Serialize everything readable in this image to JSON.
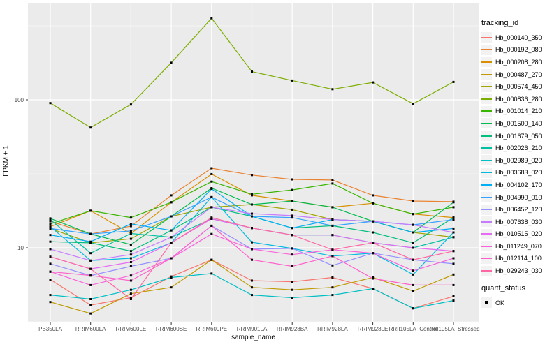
{
  "figure": {
    "background": "#FFFFFF",
    "panel_background": "#EBEBEB",
    "grid_color": "#FFFFFF",
    "tick_color": "#333333",
    "axis_text_color": "#4D4D4D",
    "point_color": "#000000"
  },
  "chart_data": {
    "type": "line",
    "title": "",
    "xlabel": "sample_name",
    "ylabel": "FPKM + 1",
    "y_scale": "log10",
    "ylim": [
      3.16,
      448
    ],
    "grid": true,
    "y_ticks": [
      {
        "label": "100",
        "value": 100
      },
      {
        "label": "10",
        "value": 10
      }
    ],
    "categories": [
      "PB350LA",
      "RRIM600LA",
      "RRIM600LE",
      "RRIM600SE",
      "RRIM600PE",
      "RRIM901LA",
      "RRIM928BA",
      "RRIM928LA",
      "RRIM928LE",
      "RRII105LA_Control",
      "RRII105LA_Stressed"
    ],
    "legend": {
      "title": "tracking_id",
      "position": "right"
    },
    "quant_status": {
      "title": "quant_status",
      "items": [
        "OK"
      ]
    },
    "series": [
      {
        "name": "Hb_000140_350",
        "color": "#F8766D",
        "values": [
          6.1,
          4.1,
          4.6,
          6.4,
          8.3,
          6.0,
          5.9,
          6.3,
          5.3,
          3.9,
          4.7
        ]
      },
      {
        "name": "Hb_000192_080",
        "color": "#EA8331",
        "values": [
          15.1,
          12.4,
          14.0,
          22.6,
          34.5,
          31.0,
          29.0,
          28.7,
          22.6,
          20.7,
          20.5
        ]
      },
      {
        "name": "Hb_000208_280",
        "color": "#D89000",
        "values": [
          13.9,
          17.8,
          12.5,
          20.3,
          31.5,
          22.6,
          20.7,
          18.8,
          20.0,
          16.9,
          16.0
        ]
      },
      {
        "name": "Hb_000487_270",
        "color": "#C09B00",
        "values": [
          4.3,
          3.6,
          4.9,
          5.4,
          8.3,
          5.4,
          5.2,
          5.4,
          6.3,
          5.1,
          6.6
        ]
      },
      {
        "name": "Hb_000574_450",
        "color": "#A3A500",
        "values": [
          13.5,
          10.8,
          11.5,
          16.3,
          18.8,
          19.6,
          18.1,
          15.5,
          15.1,
          12.7,
          11.8
        ]
      },
      {
        "name": "Hb_000836_280",
        "color": "#7CAE00",
        "values": [
          95,
          65,
          93,
          178,
          356,
          155,
          135,
          118,
          131,
          94,
          132
        ]
      },
      {
        "name": "Hb_001014_210",
        "color": "#39B600",
        "values": [
          14.5,
          17.8,
          16.0,
          20.3,
          28.0,
          23.0,
          24.6,
          27.2,
          20.0,
          16.9,
          18.8
        ]
      },
      {
        "name": "Hb_001500_140",
        "color": "#00BB4E",
        "values": [
          15.8,
          12.4,
          10.5,
          16.3,
          25.3,
          19.6,
          20.7,
          18.8,
          15.1,
          12.7,
          20.3
        ]
      },
      {
        "name": "Hb_001679_050",
        "color": "#00BF7D",
        "values": [
          11.0,
          10.8,
          9.5,
          13.1,
          18.8,
          16.3,
          13.6,
          14.1,
          12.7,
          10.8,
          16.0
        ]
      },
      {
        "name": "Hb_002026_210",
        "color": "#00C1A3",
        "values": [
          15.5,
          9.2,
          12.5,
          11.8,
          15.7,
          13.6,
          12.2,
          12.2,
          10.8,
          10.0,
          11.8
        ]
      },
      {
        "name": "Hb_002989_020",
        "color": "#00BFC4",
        "values": [
          4.8,
          4.5,
          5.2,
          6.3,
          6.7,
          4.8,
          4.6,
          4.8,
          5.3,
          3.9,
          4.4
        ]
      },
      {
        "name": "Hb_003683_020",
        "color": "#00BAE0",
        "values": [
          13.9,
          8.2,
          8.5,
          10.8,
          22.0,
          10.9,
          9.9,
          8.8,
          9.2,
          6.6,
          12.7
        ]
      },
      {
        "name": "Hb_004102_170",
        "color": "#00B0F6",
        "values": [
          12.2,
          11.0,
          14.5,
          13.1,
          25.0,
          16.3,
          13.6,
          15.5,
          15.1,
          12.7,
          13.5
        ]
      },
      {
        "name": "Hb_004990_010",
        "color": "#35A2FF",
        "values": [
          13.5,
          12.4,
          13.0,
          16.3,
          22.0,
          16.3,
          16.0,
          14.1,
          15.1,
          14.3,
          15.5
        ]
      },
      {
        "name": "Hb_006452_120",
        "color": "#9590FF",
        "values": [
          7.8,
          6.5,
          7.5,
          8.5,
          14.1,
          9.8,
          9.9,
          7.6,
          9.2,
          8.3,
          7.8
        ]
      },
      {
        "name": "Hb_007638_030",
        "color": "#C77CFF",
        "values": [
          9.8,
          8.2,
          9.0,
          11.8,
          18.8,
          17.0,
          16.5,
          15.5,
          15.1,
          14.3,
          12.7
        ]
      },
      {
        "name": "Hb_010515_020",
        "color": "#E76BF3",
        "values": [
          8.7,
          7.2,
          8.0,
          10.8,
          15.7,
          13.6,
          12.2,
          12.2,
          10.8,
          10.0,
          9.5
        ]
      },
      {
        "name": "Hb_011249_070",
        "color": "#FA62DB",
        "values": [
          6.9,
          5.6,
          6.5,
          8.5,
          12.4,
          9.8,
          9.0,
          9.7,
          9.2,
          7.0,
          8.5
        ]
      },
      {
        "name": "Hb_012114_100",
        "color": "#FF61CC",
        "values": [
          6.9,
          6.5,
          6.0,
          8.5,
          14.1,
          8.3,
          7.5,
          8.8,
          6.2,
          5.6,
          5.6
        ]
      },
      {
        "name": "Hb_029243_030",
        "color": "#FF67A4",
        "values": [
          8.7,
          7.2,
          4.5,
          10.8,
          16.0,
          13.6,
          12.2,
          9.7,
          10.8,
          8.3,
          9.5
        ]
      }
    ]
  }
}
